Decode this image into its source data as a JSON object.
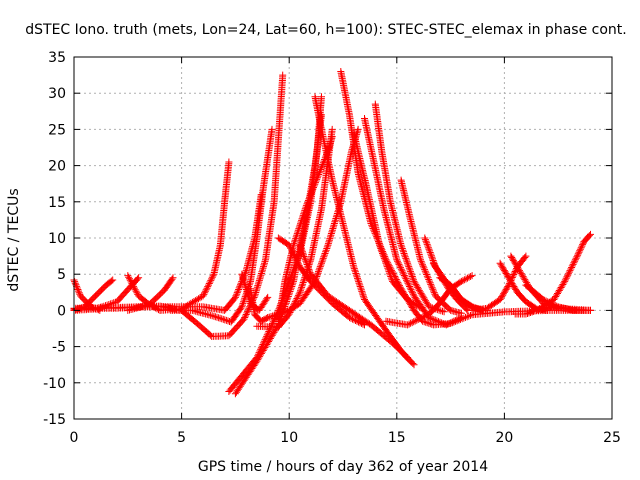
{
  "chart_data": {
    "type": "scatter",
    "title": "dSTEC Iono. truth (mets, Lon=24, Lat=60, h=100): STEC-STEC_elemax in phase cont.",
    "xlabel": "GPS time / hours of day 362 of year 2014",
    "ylabel": "dSTEC  / TECUs",
    "xlim": [
      0,
      25
    ],
    "ylim": [
      -15,
      35
    ],
    "xticks": [
      0,
      5,
      10,
      15,
      20,
      25
    ],
    "yticks": [
      -15,
      -10,
      -5,
      0,
      5,
      10,
      15,
      20,
      25,
      30,
      35
    ],
    "grid": true,
    "marker": "+",
    "color": "#ff0000",
    "series": [
      {
        "x": [
          0.0,
          0.3,
          0.8,
          1.2
        ],
        "y": [
          4.2,
          2.0,
          0.5,
          0.0
        ]
      },
      {
        "x": [
          0.0,
          0.5,
          1.0,
          1.5,
          1.8
        ],
        "y": [
          0.0,
          0.5,
          2.0,
          3.5,
          4.2
        ]
      },
      {
        "x": [
          0.0,
          1.0,
          2.0,
          2.6,
          3.0
        ],
        "y": [
          0.0,
          0.2,
          1.2,
          3.2,
          4.5
        ]
      },
      {
        "x": [
          2.5,
          3.0,
          3.5,
          4.0
        ],
        "y": [
          4.8,
          2.0,
          0.8,
          0.0
        ]
      },
      {
        "x": [
          2.5,
          3.5,
          4.2,
          4.6
        ],
        "y": [
          0.0,
          0.8,
          2.8,
          4.5
        ]
      },
      {
        "x": [
          0.0,
          2.0,
          4.0,
          5.0,
          5.8,
          6.4,
          7.2,
          7.9,
          8.4,
          8.9,
          9.3,
          9.7
        ],
        "y": [
          0.3,
          0.3,
          0.6,
          0.0,
          -2.0,
          -3.6,
          -3.5,
          -1.2,
          2.0,
          7.0,
          15.0,
          32.5
        ]
      },
      {
        "x": [
          4.0,
          5.0,
          6.0,
          6.5,
          6.8,
          7.0,
          7.2
        ],
        "y": [
          0.0,
          0.2,
          2.0,
          5.0,
          9.0,
          15.0,
          20.5
        ]
      },
      {
        "x": [
          4.5,
          5.5,
          6.5,
          7.3,
          7.8,
          8.2,
          8.5,
          8.8,
          9.2
        ],
        "y": [
          0.0,
          0.0,
          -0.8,
          -1.6,
          0.5,
          4.0,
          10.0,
          17.0,
          25.0
        ]
      },
      {
        "x": [
          0.0,
          3.0,
          5.0,
          6.0,
          7.0,
          7.5,
          8.0,
          8.4,
          8.7
        ],
        "y": [
          0.2,
          0.5,
          0.5,
          0.5,
          0.0,
          1.8,
          5.5,
          10.0,
          16.0
        ]
      },
      {
        "x": [
          7.8,
          8.2,
          8.6,
          9.0
        ],
        "y": [
          5.0,
          1.0,
          0.0,
          1.8
        ]
      },
      {
        "x": [
          8.2,
          8.4,
          8.7,
          9.0
        ],
        "y": [
          3.0,
          -0.6,
          -1.5,
          -1.0
        ]
      },
      {
        "x": [
          7.2,
          8.5,
          9.5,
          10.5,
          11.0,
          11.3,
          11.5
        ],
        "y": [
          -11.2,
          -6.5,
          0.0,
          8.0,
          15.0,
          22.0,
          29.5
        ]
      },
      {
        "x": [
          7.5,
          8.5,
          9.5,
          10.2,
          10.8,
          11.2,
          11.5
        ],
        "y": [
          -11.5,
          -7.0,
          -2.0,
          4.0,
          13.0,
          20.0,
          27.0
        ]
      },
      {
        "x": [
          9.5,
          9.8,
          10.2,
          10.8,
          11.4,
          11.8,
          12.0
        ],
        "y": [
          -1.5,
          4.0,
          9.0,
          14.5,
          19.0,
          22.0,
          24.0
        ]
      },
      {
        "x": [
          8.5,
          9.5,
          10.0,
          10.5,
          11.0,
          11.5,
          12.0
        ],
        "y": [
          -2.2,
          -2.3,
          -0.5,
          2.5,
          7.0,
          14.0,
          25.0
        ]
      },
      {
        "x": [
          9.0,
          10.0,
          10.5,
          11.2,
          11.8,
          12.4,
          12.9,
          13.2
        ],
        "y": [
          -1.0,
          0.0,
          1.0,
          4.0,
          9.0,
          15.0,
          22.0,
          25.0
        ]
      },
      {
        "x": [
          9.5,
          10.0,
          10.5,
          11.0,
          12.0,
          12.8,
          13.5
        ],
        "y": [
          10.0,
          9.0,
          6.0,
          4.0,
          1.0,
          -1.0,
          -2.0
        ]
      },
      {
        "x": [
          12.4,
          12.8,
          13.2,
          13.8,
          14.5,
          15.2,
          15.8,
          16.2,
          16.7,
          17.5,
          18.5,
          20.0,
          22.0,
          24.0
        ],
        "y": [
          33.0,
          27.0,
          19.0,
          12.0,
          7.0,
          3.0,
          0.0,
          -1.5,
          -2.0,
          -1.8,
          -0.6,
          -0.2,
          0.0,
          0.0
        ]
      },
      {
        "x": [
          11.2,
          11.5,
          12.0,
          12.5,
          13.0,
          13.5,
          14.2,
          14.8,
          15.3,
          15.8
        ],
        "y": [
          29.5,
          25.0,
          18.0,
          12.0,
          6.0,
          1.5,
          -1.5,
          -4.0,
          -6.0,
          -7.5
        ]
      },
      {
        "x": [
          10.5,
          11.0,
          11.8,
          12.8,
          13.8,
          14.8,
          15.5
        ],
        "y": [
          9.0,
          5.0,
          2.0,
          0.0,
          -2.0,
          -4.5,
          -6.5
        ]
      },
      {
        "x": [
          14.0,
          14.3,
          14.7,
          15.2,
          15.8,
          16.5,
          17.2
        ],
        "y": [
          28.5,
          22.0,
          15.0,
          9.0,
          4.0,
          0.5,
          -0.2
        ]
      },
      {
        "x": [
          13.5,
          13.9,
          14.4,
          15.0,
          15.8,
          16.5,
          17.3,
          18.0
        ],
        "y": [
          26.5,
          21.0,
          14.0,
          7.0,
          2.0,
          -1.0,
          -2.0,
          -1.0
        ]
      },
      {
        "x": [
          15.2,
          15.6,
          16.1,
          16.8,
          17.5,
          18.0
        ],
        "y": [
          18.0,
          13.0,
          7.0,
          2.0,
          0.0,
          -0.4
        ]
      },
      {
        "x": [
          13.0,
          13.6,
          14.2,
          14.8,
          15.5,
          16.2
        ],
        "y": [
          24.5,
          17.0,
          9.0,
          4.0,
          1.5,
          0.2
        ]
      },
      {
        "x": [
          16.3,
          16.8,
          17.4,
          18.0,
          18.6,
          19.2
        ],
        "y": [
          10.0,
          6.0,
          3.5,
          1.5,
          0.3,
          0.0
        ]
      },
      {
        "x": [
          16.7,
          17.0,
          17.4,
          17.8,
          18.3
        ],
        "y": [
          6.5,
          5.0,
          3.0,
          1.5,
          0.0
        ]
      },
      {
        "x": [
          14.5,
          15.5,
          16.5,
          17.0,
          17.5,
          18.0,
          18.5
        ],
        "y": [
          -1.5,
          -2.0,
          -0.5,
          1.0,
          3.0,
          4.0,
          4.8
        ]
      },
      {
        "x": [
          17.0,
          17.5,
          18.0,
          18.5,
          19.0
        ],
        "y": [
          4.5,
          3.5,
          1.5,
          0.5,
          0.0
        ]
      },
      {
        "x": [
          19.8,
          20.2,
          20.6,
          21.0,
          21.5,
          22.0
        ],
        "y": [
          6.5,
          4.5,
          2.5,
          1.2,
          0.2,
          0.0
        ]
      },
      {
        "x": [
          18.5,
          19.2,
          19.8,
          20.2,
          20.6,
          21.0
        ],
        "y": [
          0.0,
          0.3,
          1.5,
          3.5,
          6.0,
          7.5
        ]
      },
      {
        "x": [
          20.3,
          20.7,
          21.2,
          21.8,
          22.5
        ],
        "y": [
          7.5,
          5.5,
          3.0,
          1.0,
          0.2
        ]
      },
      {
        "x": [
          20.5,
          21.0,
          21.5,
          22.2,
          23.0,
          24.0
        ],
        "y": [
          -0.5,
          -0.5,
          0.0,
          0.5,
          0.2,
          0.0
        ]
      },
      {
        "x": [
          21.5,
          22.3,
          22.8,
          23.3,
          23.7,
          24.0
        ],
        "y": [
          0.0,
          1.5,
          4.0,
          7.0,
          9.5,
          10.5
        ]
      },
      {
        "x": [
          21.0,
          21.8,
          22.5,
          23.2,
          24.0
        ],
        "y": [
          3.5,
          1.5,
          0.5,
          0.0,
          0.0
        ]
      }
    ]
  }
}
